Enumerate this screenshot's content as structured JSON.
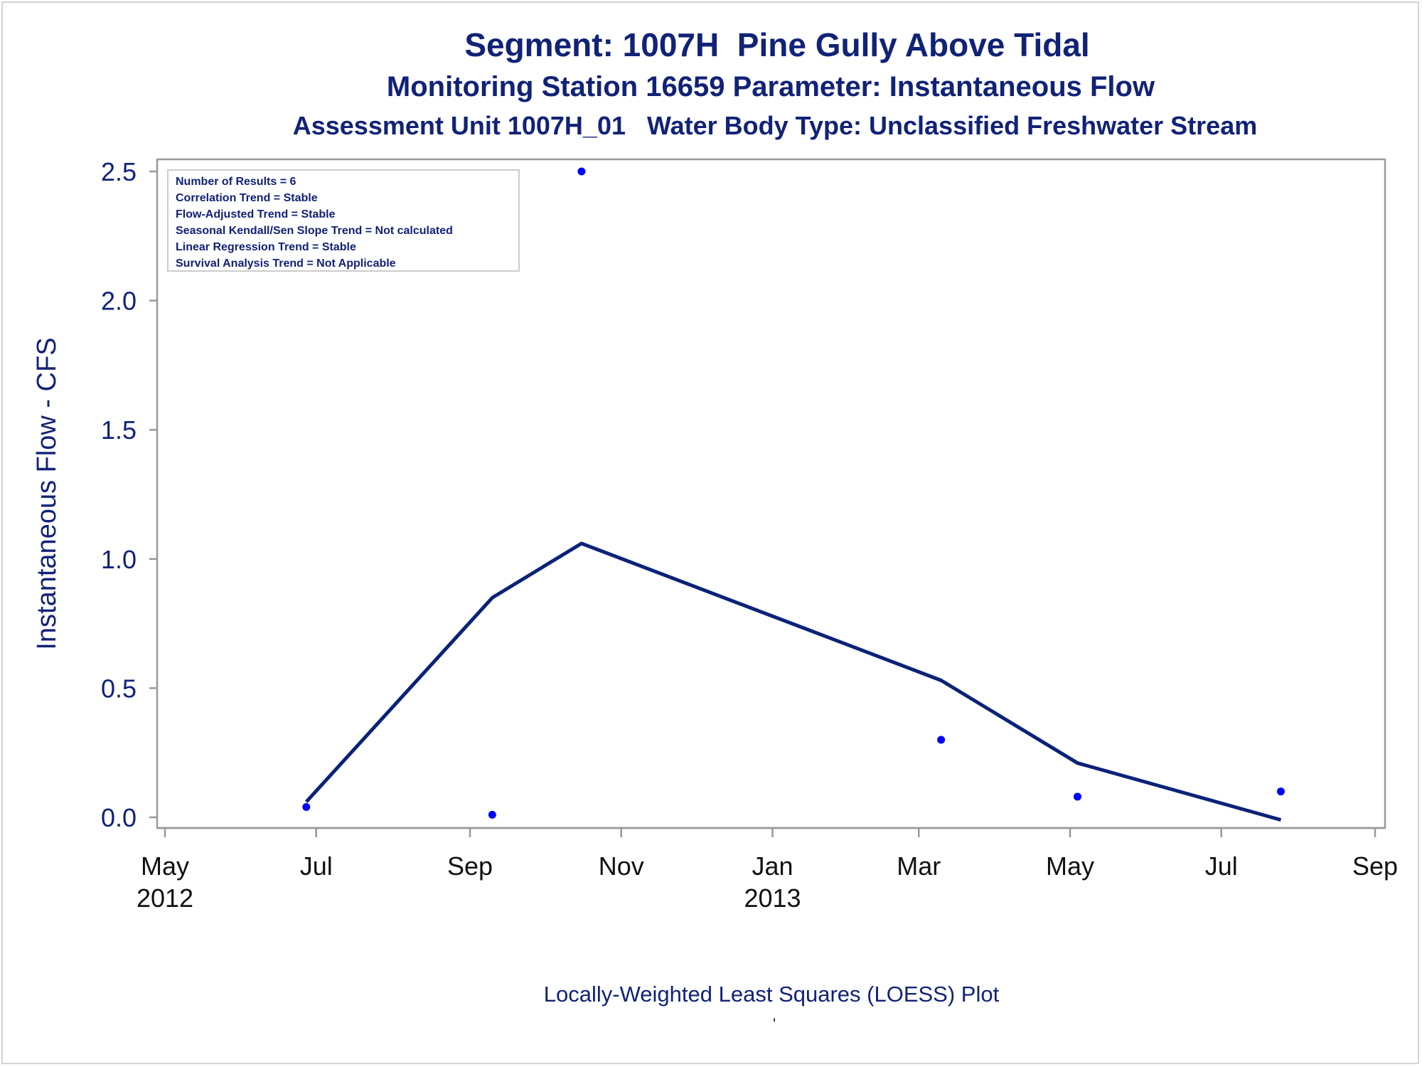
{
  "titles": {
    "line1": "Segment: 1007H  Pine Gully Above Tidal",
    "line2": "Monitoring Station 16659 Parameter: Instantaneous Flow",
    "line3": "Assessment Unit 1007H_01   Water Body Type: Unclassified Freshwater Stream"
  },
  "stats_box": [
    "Number of Results = 6",
    "Correlation Trend = Stable",
    "Flow-Adjusted Trend = Stable",
    "Seasonal Kendall/Sen Slope Trend = Not calculated",
    "Linear Regression Trend = Stable",
    "Survival Analysis Trend = Not Applicable"
  ],
  "footnote": "Locally-Weighted Least Squares (LOESS) Plot",
  "footnote_mark": "'",
  "colors": {
    "text": "#112277",
    "points": "#0000ff",
    "loess_line": "#0a2277",
    "frame": "#999999"
  },
  "chart_data": {
    "type": "scatter",
    "xlabel": "",
    "ylabel": "Instantaneous Flow - CFS",
    "xlim": [
      "2012-05-01",
      "2013-09-01"
    ],
    "ylim": [
      0,
      2.5
    ],
    "x_ticks": [
      {
        "date": "2012-05-01",
        "label": "May",
        "year": "2012"
      },
      {
        "date": "2012-07-01",
        "label": "Jul",
        "year": ""
      },
      {
        "date": "2012-09-01",
        "label": "Sep",
        "year": ""
      },
      {
        "date": "2012-11-01",
        "label": "Nov",
        "year": ""
      },
      {
        "date": "2013-01-01",
        "label": "Jan",
        "year": "2013"
      },
      {
        "date": "2013-03-01",
        "label": "Mar",
        "year": ""
      },
      {
        "date": "2013-05-01",
        "label": "May",
        "year": ""
      },
      {
        "date": "2013-07-01",
        "label": "Jul",
        "year": ""
      },
      {
        "date": "2013-09-01",
        "label": "Sep",
        "year": ""
      }
    ],
    "y_ticks": [
      "0.0",
      "0.5",
      "1.0",
      "1.5",
      "2.0",
      "2.5"
    ],
    "series": [
      {
        "type": "scatter",
        "x": [
          "2012-06-27",
          "2012-09-10",
          "2012-10-16",
          "2013-03-10",
          "2013-05-04",
          "2013-07-25"
        ],
        "y": [
          0.04,
          0.01,
          2.5,
          0.3,
          0.08,
          0.1
        ]
      },
      {
        "type": "line",
        "x": [
          "2012-06-27",
          "2012-09-10",
          "2012-10-16",
          "2013-03-10",
          "2013-05-04",
          "2013-07-25"
        ],
        "y": [
          0.06,
          0.85,
          1.06,
          0.53,
          0.21,
          -0.01
        ]
      }
    ]
  }
}
